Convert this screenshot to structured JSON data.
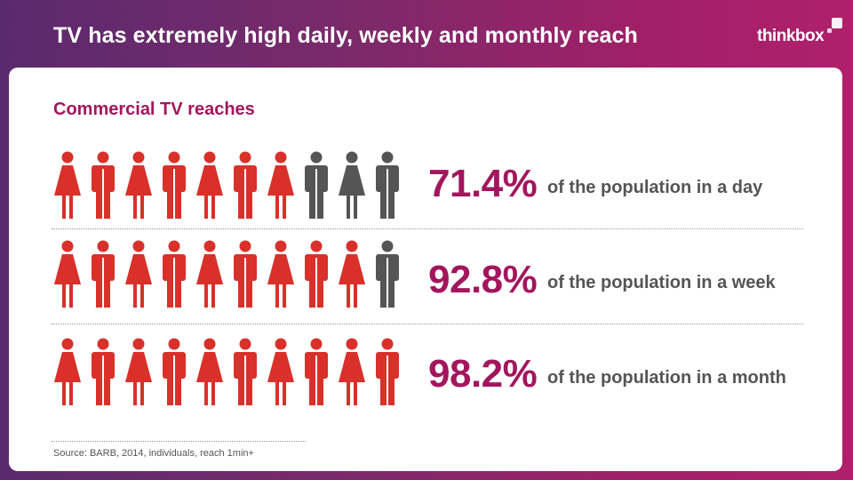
{
  "header": {
    "title": "TV has extremely high daily, weekly and monthly reach",
    "logo": "thinkbox"
  },
  "subtitle": "Commercial TV reaches",
  "colors": {
    "reached": "#d9302a",
    "not_reached": "#555555",
    "accent": "#a3165d"
  },
  "chart_data": {
    "type": "pictograph",
    "title": "Commercial TV reaches",
    "unit": "%",
    "figures_per_row": 10,
    "rows": [
      {
        "value": 71.4,
        "pct_label": "71.4%",
        "label": "of the population in a day",
        "filled": 7
      },
      {
        "value": 92.8,
        "pct_label": "92.8%",
        "label": "of the population in a week",
        "filled": 9
      },
      {
        "value": 98.2,
        "pct_label": "98.2%",
        "label": "of the population in a month",
        "filled": 10
      }
    ]
  },
  "source": "Source: BARB, 2014, individuals, reach 1min+"
}
